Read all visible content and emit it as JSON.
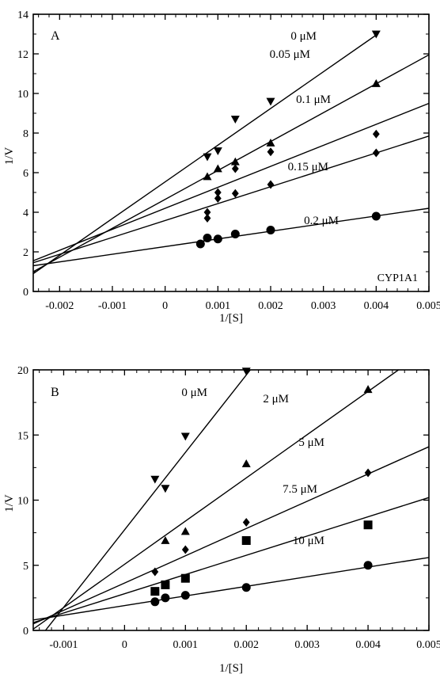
{
  "chart_data": [
    {
      "type": "scatter",
      "panel_label": "A",
      "annotation": "CYP1A1",
      "xlabel": "1/[S]",
      "ylabel": "1/V",
      "xlim": [
        -0.0025,
        0.005
      ],
      "ylim": [
        0,
        14
      ],
      "x_ticks": [
        -0.002,
        -0.001,
        0,
        0.001,
        0.002,
        0.003,
        0.004,
        0.005
      ],
      "x_tick_labels": [
        "-0.002",
        "-0.001",
        "0",
        "0.001",
        "0.002",
        "0.003",
        "0.004",
        "0.005"
      ],
      "y_ticks": [
        0,
        2,
        4,
        6,
        8,
        10,
        12,
        14
      ],
      "y_tick_labels": [
        "0",
        "2",
        "4",
        "6",
        "8",
        "10",
        "12",
        "14"
      ],
      "grid": false,
      "series": [
        {
          "name": "0 μM",
          "marker": "circle",
          "x": [
            0.00067,
            0.0008,
            0.001,
            0.00133,
            0.002,
            0.004
          ],
          "y": [
            2.4,
            2.7,
            2.65,
            2.9,
            3.1,
            3.8
          ],
          "line": [
            [
              -0.0025,
              1.3
            ],
            [
              0.005,
              4.2
            ]
          ]
        },
        {
          "name": "0.05 μM",
          "marker": "diamond",
          "x": [
            0.0008,
            0.0008,
            0.001,
            0.00133,
            0.002,
            0.004
          ],
          "y": [
            3.7,
            4.0,
            4.7,
            4.95,
            5.4,
            7.0
          ],
          "line": [
            [
              -0.0025,
              1.45
            ],
            [
              0.005,
              7.85
            ]
          ]
        },
        {
          "name": "0.1 μM",
          "marker": "diamond",
          "x": [
            0.001,
            0.00133,
            0.002,
            0.004
          ],
          "y": [
            5.0,
            6.2,
            7.05,
            7.95
          ],
          "line": [
            [
              -0.0025,
              1.55
            ],
            [
              0.005,
              9.5
            ]
          ]
        },
        {
          "name": "0.15 μM",
          "marker": "triangle",
          "x": [
            0.0008,
            0.001,
            0.00133,
            0.002,
            0.004
          ],
          "y": [
            5.8,
            6.2,
            6.55,
            7.5,
            10.5
          ],
          "line": [
            [
              -0.0025,
              1.0
            ],
            [
              0.005,
              11.95
            ]
          ]
        },
        {
          "name": "0.2 μM",
          "marker": "triangle-down",
          "x": [
            0.0008,
            0.001,
            0.00133,
            0.002,
            0.004
          ],
          "y": [
            6.8,
            7.1,
            8.7,
            9.6,
            13.0
          ],
          "line": [
            [
              -0.0025,
              0.9
            ],
            [
              0.004,
              12.95
            ]
          ]
        }
      ]
    },
    {
      "type": "scatter",
      "panel_label": "B",
      "xlabel": "1/[S]",
      "ylabel": "1/V",
      "xlim": [
        -0.0015,
        0.005
      ],
      "ylim": [
        0,
        20
      ],
      "x_ticks": [
        -0.001,
        0,
        0.001,
        0.002,
        0.003,
        0.004,
        0.005
      ],
      "x_tick_labels": [
        "-0.001",
        "0",
        "0.001",
        "0.002",
        "0.003",
        "0.004",
        "0.005"
      ],
      "y_ticks": [
        0,
        5,
        10,
        15,
        20
      ],
      "y_tick_labels": [
        "0",
        "5",
        "10",
        "15",
        "20"
      ],
      "grid": false,
      "series": [
        {
          "name": "0 μM",
          "marker": "circle",
          "x": [
            0.0005,
            0.00067,
            0.001,
            0.002,
            0.004
          ],
          "y": [
            2.2,
            2.5,
            2.7,
            3.3,
            5.0
          ],
          "line": [
            [
              -0.0015,
              0.8
            ],
            [
              0.005,
              5.6
            ]
          ]
        },
        {
          "name": "2 μM",
          "marker": "square",
          "x": [
            0.0005,
            0.00067,
            0.001,
            0.002,
            0.004
          ],
          "y": [
            3.0,
            3.5,
            4.0,
            6.9,
            8.1
          ],
          "line": [
            [
              -0.0015,
              0.6
            ],
            [
              0.005,
              10.2
            ]
          ]
        },
        {
          "name": "5 μM",
          "marker": "diamond",
          "x": [
            0.0005,
            0.001,
            0.002,
            0.004
          ],
          "y": [
            4.5,
            6.2,
            8.3,
            12.1
          ],
          "line": [
            [
              -0.0015,
              0.5
            ],
            [
              0.005,
              14.1
            ]
          ]
        },
        {
          "name": "7.5 μM",
          "marker": "triangle",
          "x": [
            0.00067,
            0.001,
            0.002,
            0.004
          ],
          "y": [
            6.9,
            7.6,
            12.8,
            18.5
          ],
          "line": [
            [
              -0.0015,
              0.1
            ],
            [
              0.0045,
              20.0
            ]
          ]
        },
        {
          "name": "10 μM",
          "marker": "triangle-down",
          "x": [
            0.0005,
            0.00067,
            0.001,
            0.002
          ],
          "y": [
            11.6,
            10.9,
            14.9,
            19.9
          ],
          "line": [
            [
              -0.0014,
              -0.6
            ],
            [
              0.00215,
              20.5
            ]
          ]
        }
      ]
    }
  ]
}
